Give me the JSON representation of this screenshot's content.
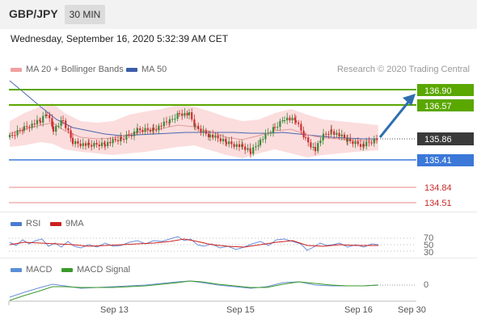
{
  "header": {
    "symbol": "GBP/JPY",
    "timeframe": "30 MIN",
    "datetime": "Wednesday, September 16, 2020 5:32:39 AM CET"
  },
  "legend": {
    "ma20": "MA 20 + Bollinger Bands",
    "ma50": "MA 50",
    "credit": "Research © 2020 Trading Central"
  },
  "price_levels": {
    "r2": "136.90",
    "r1": "136.57",
    "current": "135.86",
    "s1": "135.41",
    "s2": "134.84",
    "s3": "134.51"
  },
  "rsi": {
    "label": "RSI",
    "ma_label": "9MA",
    "levels": [
      "70",
      "50",
      "30"
    ]
  },
  "macd": {
    "label": "MACD",
    "signal_label": "MACD Signal",
    "zero": "0"
  },
  "xaxis": {
    "ticks": [
      "Sep 13",
      "Sep 15",
      "Sep 16",
      "Sep 30"
    ]
  },
  "colors": {
    "resistance": "#5aa700",
    "support": "#3b78d8",
    "low_levels": "#e07b7b",
    "up_candle": "#3a8a3a",
    "down_candle": "#cc2d2d",
    "arrow": "#2f6fb0",
    "bollinger": "#f9c9c9",
    "ma50": "#3b5ea8"
  }
}
